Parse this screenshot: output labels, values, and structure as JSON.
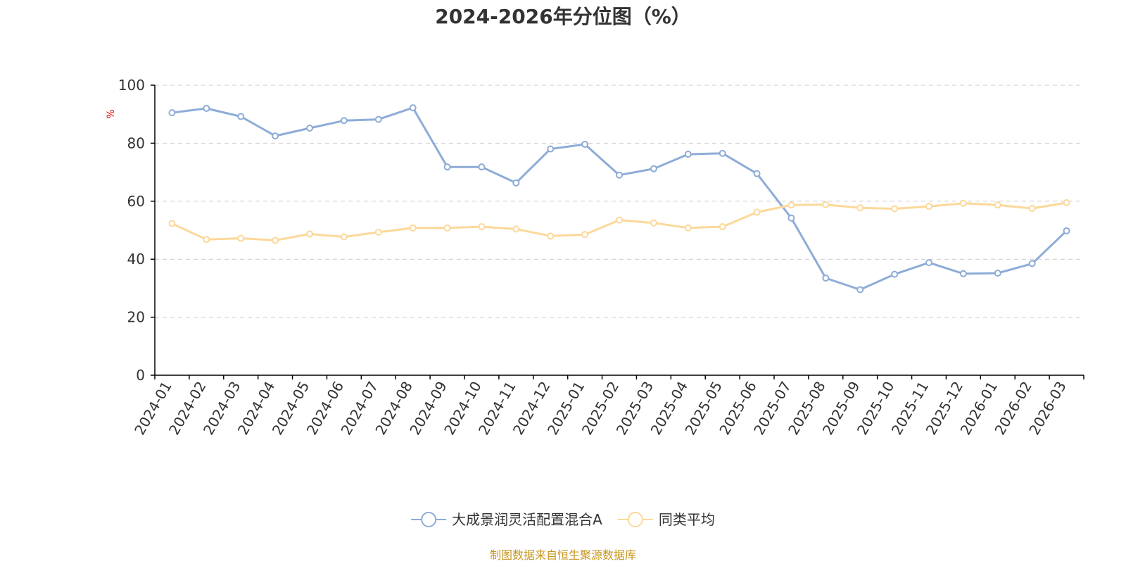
{
  "chart_data": {
    "type": "line",
    "title": "2024-2026年分位图（%）",
    "ylabel": "%",
    "xlabel": "",
    "ylim": [
      0,
      100
    ],
    "yticks": [
      0,
      20,
      40,
      60,
      80,
      100
    ],
    "grid": true,
    "legend_position": "bottom-center",
    "categories": [
      "2024-01",
      "2024-02",
      "2024-03",
      "2024-04",
      "2024-05",
      "2024-06",
      "2024-07",
      "2024-08",
      "2024-09",
      "2024-10",
      "2024-11",
      "2024-12",
      "2025-01",
      "2025-02",
      "2025-03",
      "2025-04",
      "2025-05",
      "2025-06",
      "2025-07",
      "2025-08",
      "2025-09",
      "2025-10",
      "2025-11",
      "2025-12",
      "2026-01",
      "2026-02",
      "2026-03"
    ],
    "series": [
      {
        "name": "大成景润灵活配置混合A",
        "color": "#8eacd8",
        "values": [
          90.5,
          92.0,
          89.2,
          82.5,
          85.2,
          87.8,
          88.2,
          92.2,
          71.8,
          71.8,
          66.3,
          78.0,
          79.6,
          69.0,
          71.2,
          76.2,
          76.5,
          69.5,
          54.2,
          33.5,
          29.5,
          34.8,
          38.8,
          35.0,
          35.2,
          38.5,
          49.8
        ]
      },
      {
        "name": "同类平均",
        "color": "#fcd89a",
        "values": [
          52.3,
          46.8,
          47.2,
          46.5,
          48.7,
          47.7,
          49.3,
          50.8,
          50.8,
          51.2,
          50.4,
          48.0,
          48.5,
          53.5,
          52.5,
          50.8,
          51.2,
          56.2,
          58.7,
          58.8,
          57.7,
          57.4,
          58.2,
          59.3,
          58.7,
          57.5,
          59.5
        ]
      }
    ]
  },
  "source_note": "制图数据来自恒生聚源数据库"
}
